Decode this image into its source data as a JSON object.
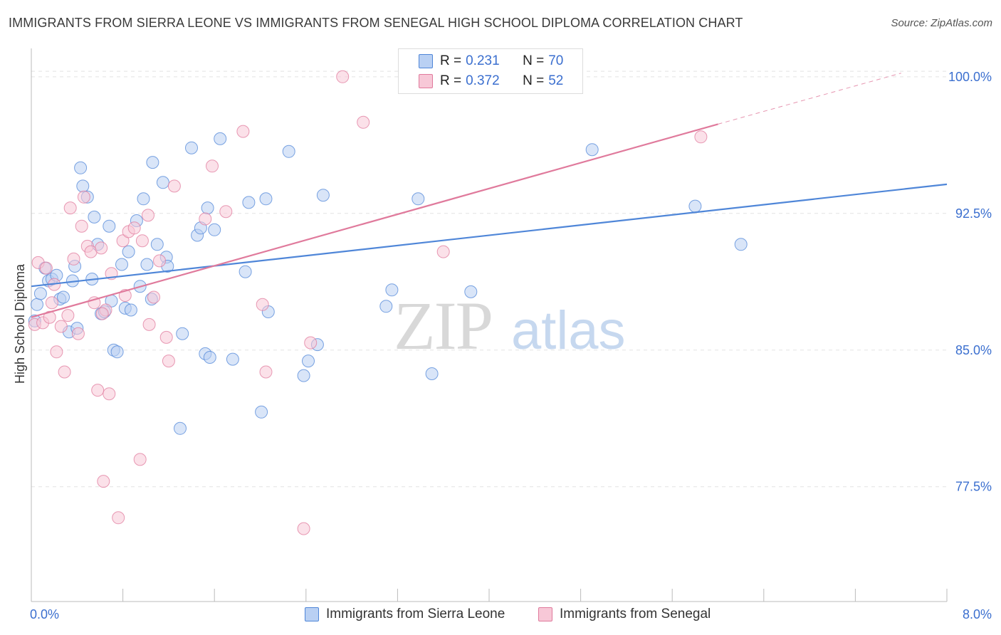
{
  "header": {
    "title": "IMMIGRANTS FROM SIERRA LEONE VS IMMIGRANTS FROM SENEGAL HIGH SCHOOL DIPLOMA CORRELATION CHART",
    "source": "Source: ZipAtlas.com"
  },
  "legend": {
    "r_label": "R =",
    "n_label": "N =",
    "entries": [
      {
        "r": "0.231",
        "n": "70",
        "color": "#4f86d8",
        "fill": "#b9d0f3"
      },
      {
        "r": "0.372",
        "n": "52",
        "color": "#e07a9c",
        "fill": "#f7c8d7"
      }
    ]
  },
  "bottom_legend": [
    "Immigrants from Sierra Leone",
    "Immigrants from Senegal"
  ],
  "watermark": {
    "zip": "ZIP",
    "atlas": "atlas"
  },
  "chart_data": {
    "type": "scatter",
    "title": "IMMIGRANTS FROM SIERRA LEONE VS IMMIGRANTS FROM SENEGAL HIGH SCHOOL DIPLOMA CORRELATION CHART",
    "xlabel": "",
    "ylabel": "High School Diploma",
    "xlim": [
      0.0,
      8.0
    ],
    "ylim": [
      71.2,
      101.4
    ],
    "x_tick_labels": [
      "0.0%",
      "8.0%"
    ],
    "y_ticks": [
      77.5,
      85.0,
      92.5,
      100.0
    ],
    "y_tick_labels": [
      "77.5%",
      "85.0%",
      "92.5%",
      "100.0%"
    ],
    "grid": true,
    "series": [
      {
        "name": "Immigrants from Sierra Leone",
        "color": "#4f86d8",
        "fill": "#b9d0f3",
        "trend": {
          "x": [
            0.0,
            8.0
          ],
          "y": [
            88.5,
            94.1
          ]
        },
        "points": [
          [
            0.03,
            86.6
          ],
          [
            0.05,
            87.5
          ],
          [
            0.08,
            88.1
          ],
          [
            0.12,
            89.5
          ],
          [
            0.15,
            88.8
          ],
          [
            0.18,
            88.9
          ],
          [
            0.22,
            89.1
          ],
          [
            0.25,
            87.8
          ],
          [
            0.28,
            87.9
          ],
          [
            0.33,
            86.0
          ],
          [
            0.36,
            88.8
          ],
          [
            0.38,
            89.6
          ],
          [
            0.4,
            86.2
          ],
          [
            0.43,
            95.0
          ],
          [
            0.45,
            94.0
          ],
          [
            0.49,
            93.4
          ],
          [
            0.53,
            88.9
          ],
          [
            0.55,
            92.3
          ],
          [
            0.58,
            90.8
          ],
          [
            0.61,
            87.0
          ],
          [
            0.64,
            87.1
          ],
          [
            0.68,
            91.8
          ],
          [
            0.7,
            87.7
          ],
          [
            0.72,
            85.0
          ],
          [
            0.75,
            84.9
          ],
          [
            0.79,
            89.7
          ],
          [
            0.82,
            87.3
          ],
          [
            0.85,
            90.4
          ],
          [
            0.87,
            87.2
          ],
          [
            0.92,
            92.1
          ],
          [
            0.95,
            88.5
          ],
          [
            0.98,
            93.3
          ],
          [
            1.01,
            89.7
          ],
          [
            1.05,
            87.8
          ],
          [
            1.06,
            95.3
          ],
          [
            1.1,
            90.8
          ],
          [
            1.15,
            94.2
          ],
          [
            1.18,
            90.1
          ],
          [
            1.19,
            89.6
          ],
          [
            1.3,
            80.7
          ],
          [
            1.32,
            85.9
          ],
          [
            1.4,
            96.1
          ],
          [
            1.45,
            91.3
          ],
          [
            1.48,
            91.7
          ],
          [
            1.52,
            84.8
          ],
          [
            1.54,
            92.8
          ],
          [
            1.56,
            84.6
          ],
          [
            1.6,
            91.6
          ],
          [
            1.65,
            96.6
          ],
          [
            1.76,
            84.5
          ],
          [
            1.87,
            89.3
          ],
          [
            1.9,
            93.1
          ],
          [
            2.01,
            81.6
          ],
          [
            2.05,
            93.3
          ],
          [
            2.07,
            87.1
          ],
          [
            2.25,
            95.9
          ],
          [
            2.38,
            83.6
          ],
          [
            2.42,
            84.4
          ],
          [
            2.5,
            85.3
          ],
          [
            2.55,
            93.5
          ],
          [
            3.1,
            87.4
          ],
          [
            3.15,
            88.3
          ],
          [
            3.34,
            99.9
          ],
          [
            3.38,
            93.3
          ],
          [
            3.5,
            83.7
          ],
          [
            3.84,
            88.2
          ],
          [
            4.33,
            99.9
          ],
          [
            4.9,
            96.0
          ],
          [
            5.8,
            92.9
          ],
          [
            6.2,
            90.8
          ]
        ]
      },
      {
        "name": "Immigrants from Senegal",
        "color": "#e07a9c",
        "fill": "#f7c8d7",
        "trend": {
          "x": [
            0.0,
            6.0
          ],
          "y": [
            86.8,
            97.4
          ]
        },
        "trend_dashed": {
          "x": [
            6.0,
            7.6
          ],
          "y": [
            97.4,
            100.2
          ]
        },
        "points": [
          [
            0.03,
            86.4
          ],
          [
            0.06,
            89.8
          ],
          [
            0.1,
            86.5
          ],
          [
            0.13,
            89.5
          ],
          [
            0.16,
            86.8
          ],
          [
            0.18,
            87.6
          ],
          [
            0.2,
            88.6
          ],
          [
            0.22,
            84.9
          ],
          [
            0.26,
            86.3
          ],
          [
            0.29,
            83.8
          ],
          [
            0.32,
            86.9
          ],
          [
            0.34,
            92.8
          ],
          [
            0.37,
            90.0
          ],
          [
            0.41,
            85.9
          ],
          [
            0.44,
            91.8
          ],
          [
            0.46,
            93.4
          ],
          [
            0.49,
            90.7
          ],
          [
            0.52,
            90.4
          ],
          [
            0.55,
            87.6
          ],
          [
            0.58,
            82.8
          ],
          [
            0.61,
            90.6
          ],
          [
            0.63,
            77.8
          ],
          [
            0.65,
            87.2
          ],
          [
            0.68,
            82.6
          ],
          [
            0.7,
            89.2
          ],
          [
            0.76,
            75.8
          ],
          [
            0.8,
            91.0
          ],
          [
            0.82,
            88.0
          ],
          [
            0.85,
            91.5
          ],
          [
            0.9,
            91.7
          ],
          [
            0.95,
            79.0
          ],
          [
            0.97,
            91.0
          ],
          [
            1.02,
            92.4
          ],
          [
            1.03,
            86.4
          ],
          [
            1.07,
            87.9
          ],
          [
            1.12,
            89.9
          ],
          [
            1.18,
            85.7
          ],
          [
            1.2,
            84.4
          ],
          [
            1.25,
            94.0
          ],
          [
            1.52,
            92.2
          ],
          [
            1.58,
            95.1
          ],
          [
            1.7,
            92.6
          ],
          [
            1.85,
            97.0
          ],
          [
            2.02,
            87.5
          ],
          [
            2.05,
            83.8
          ],
          [
            2.38,
            75.2
          ],
          [
            2.44,
            85.4
          ],
          [
            2.72,
            100.0
          ],
          [
            2.9,
            97.5
          ],
          [
            3.6,
            90.4
          ],
          [
            5.85,
            96.7
          ],
          [
            0.62,
            87.0
          ]
        ]
      }
    ]
  }
}
